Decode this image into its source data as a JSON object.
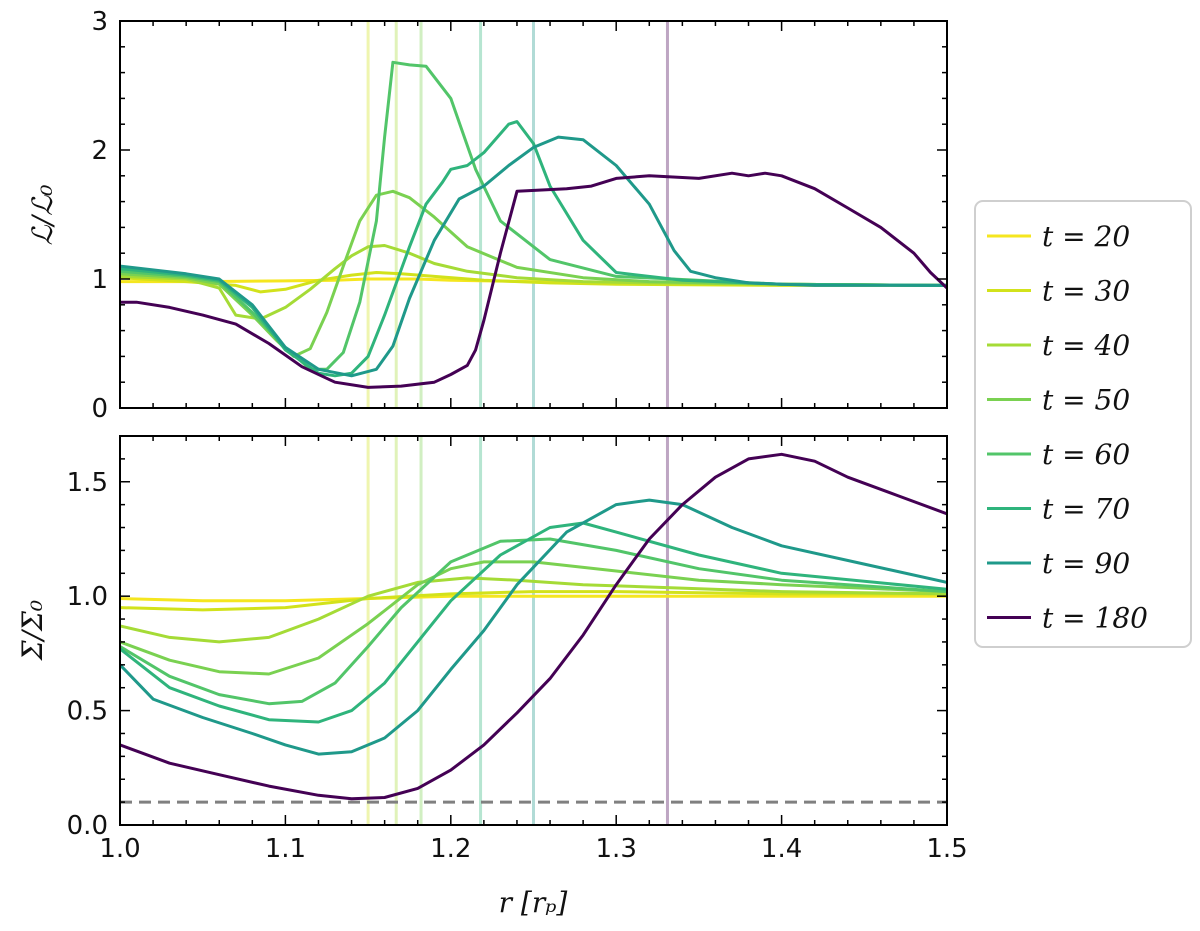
{
  "chart_data": [
    {
      "type": "line",
      "panel": "top",
      "ylabel": "ℒ/ℒ₀",
      "xlabel": "",
      "xlim": [
        1.0,
        1.5
      ],
      "ylim": [
        0,
        3
      ],
      "yticks": [
        0,
        1,
        2,
        3
      ],
      "ytick_labels": [
        "0",
        "1",
        "2",
        "3"
      ],
      "xticks": [
        1.0,
        1.1,
        1.2,
        1.3,
        1.4,
        1.5
      ],
      "vlines": [
        {
          "x": 1.15,
          "series": "t = 30"
        },
        {
          "x": 1.167,
          "series": "t = 40"
        },
        {
          "x": 1.182,
          "series": "t = 50"
        },
        {
          "x": 1.218,
          "series": "t = 70"
        },
        {
          "x": 1.25,
          "series": "t = 90"
        },
        {
          "x": 1.331,
          "series": "t = 180"
        }
      ],
      "series": [
        {
          "name": "t = 20",
          "color": "#f5e61f",
          "x": [
            1.0,
            1.05,
            1.1,
            1.13,
            1.15,
            1.18,
            1.2,
            1.3,
            1.4,
            1.5
          ],
          "y": [
            0.98,
            0.98,
            0.985,
            0.99,
            1.0,
            1.0,
            0.99,
            0.97,
            0.96,
            0.95
          ]
        },
        {
          "name": "t = 30",
          "color": "#d2e21b",
          "x": [
            1.0,
            1.04,
            1.07,
            1.085,
            1.1,
            1.12,
            1.14,
            1.155,
            1.17,
            1.19,
            1.22,
            1.26,
            1.3,
            1.4,
            1.5
          ],
          "y": [
            1.01,
            0.98,
            0.95,
            0.9,
            0.92,
            0.99,
            1.03,
            1.05,
            1.04,
            1.02,
            0.99,
            0.97,
            0.96,
            0.95,
            0.95
          ]
        },
        {
          "name": "t = 40",
          "color": "#a5db36",
          "x": [
            1.0,
            1.04,
            1.06,
            1.07,
            1.085,
            1.1,
            1.115,
            1.13,
            1.14,
            1.15,
            1.16,
            1.175,
            1.19,
            1.21,
            1.24,
            1.28,
            1.32,
            1.4,
            1.5
          ],
          "y": [
            1.02,
            1.0,
            0.93,
            0.72,
            0.69,
            0.78,
            0.92,
            1.08,
            1.18,
            1.25,
            1.26,
            1.2,
            1.12,
            1.06,
            1.01,
            0.98,
            0.97,
            0.96,
            0.95
          ]
        },
        {
          "name": "t = 50",
          "color": "#7ad151",
          "x": [
            1.0,
            1.04,
            1.06,
            1.08,
            1.095,
            1.105,
            1.115,
            1.125,
            1.135,
            1.145,
            1.155,
            1.165,
            1.175,
            1.19,
            1.21,
            1.24,
            1.28,
            1.32,
            1.4,
            1.5
          ],
          "y": [
            1.04,
            1.01,
            0.96,
            0.72,
            0.52,
            0.4,
            0.46,
            0.74,
            1.1,
            1.45,
            1.65,
            1.68,
            1.63,
            1.48,
            1.25,
            1.09,
            1.01,
            0.98,
            0.96,
            0.95
          ]
        },
        {
          "name": "t = 60",
          "color": "#52c569",
          "x": [
            1.0,
            1.04,
            1.06,
            1.08,
            1.1,
            1.115,
            1.125,
            1.135,
            1.145,
            1.155,
            1.16,
            1.165,
            1.175,
            1.185,
            1.2,
            1.215,
            1.23,
            1.26,
            1.3,
            1.4,
            1.5
          ],
          "y": [
            1.06,
            1.02,
            0.98,
            0.74,
            0.47,
            0.3,
            0.3,
            0.43,
            0.82,
            1.45,
            2.1,
            2.68,
            2.66,
            2.65,
            2.4,
            1.85,
            1.45,
            1.15,
            1.02,
            0.96,
            0.95
          ]
        },
        {
          "name": "t = 70",
          "color": "#2fb47c",
          "x": [
            1.0,
            1.04,
            1.06,
            1.08,
            1.1,
            1.12,
            1.13,
            1.14,
            1.15,
            1.16,
            1.175,
            1.185,
            1.195,
            1.2,
            1.21,
            1.22,
            1.235,
            1.24,
            1.25,
            1.26,
            1.28,
            1.3,
            1.34,
            1.4,
            1.5
          ],
          "y": [
            1.08,
            1.03,
            0.99,
            0.78,
            0.45,
            0.27,
            0.25,
            0.27,
            0.4,
            0.72,
            1.25,
            1.58,
            1.75,
            1.85,
            1.88,
            1.98,
            2.2,
            2.22,
            2.05,
            1.72,
            1.3,
            1.05,
            0.99,
            0.96,
            0.95
          ]
        },
        {
          "name": "t = 90",
          "color": "#1f998a",
          "x": [
            1.0,
            1.04,
            1.06,
            1.08,
            1.1,
            1.12,
            1.14,
            1.155,
            1.165,
            1.175,
            1.19,
            1.205,
            1.22,
            1.235,
            1.25,
            1.265,
            1.28,
            1.3,
            1.32,
            1.335,
            1.345,
            1.36,
            1.38,
            1.4,
            1.42,
            1.5
          ],
          "y": [
            1.1,
            1.04,
            1.0,
            0.8,
            0.47,
            0.3,
            0.25,
            0.3,
            0.48,
            0.85,
            1.3,
            1.62,
            1.72,
            1.88,
            2.02,
            2.1,
            2.08,
            1.88,
            1.58,
            1.22,
            1.06,
            1.01,
            0.97,
            0.96,
            0.95,
            0.95
          ]
        },
        {
          "name": "t = 180",
          "color": "#440154",
          "x": [
            1.0,
            1.01,
            1.03,
            1.05,
            1.07,
            1.09,
            1.11,
            1.13,
            1.15,
            1.17,
            1.19,
            1.2,
            1.21,
            1.215,
            1.22,
            1.23,
            1.24,
            1.255,
            1.27,
            1.285,
            1.3,
            1.32,
            1.35,
            1.37,
            1.38,
            1.39,
            1.4,
            1.42,
            1.44,
            1.46,
            1.48,
            1.49,
            1.5
          ],
          "y": [
            0.82,
            0.82,
            0.78,
            0.72,
            0.65,
            0.5,
            0.32,
            0.2,
            0.16,
            0.17,
            0.2,
            0.26,
            0.33,
            0.45,
            0.68,
            1.2,
            1.68,
            1.69,
            1.7,
            1.72,
            1.78,
            1.8,
            1.78,
            1.82,
            1.8,
            1.82,
            1.8,
            1.7,
            1.55,
            1.4,
            1.2,
            1.05,
            0.93
          ]
        }
      ]
    },
    {
      "type": "line",
      "panel": "bottom",
      "ylabel": "Σ/Σ₀",
      "xlabel": "r [rₚ]",
      "xlim": [
        1.0,
        1.5
      ],
      "ylim": [
        0.0,
        1.7
      ],
      "yticks": [
        0.0,
        0.5,
        1.0,
        1.5
      ],
      "ytick_labels": [
        "0.0",
        "0.5",
        "1.0",
        "1.5"
      ],
      "xticks": [
        1.0,
        1.1,
        1.2,
        1.3,
        1.4,
        1.5
      ],
      "xtick_labels": [
        "1.0",
        "1.1",
        "1.2",
        "1.3",
        "1.4",
        "1.5"
      ],
      "hline": {
        "y": 0.1,
        "style": "dashed",
        "color": "#808080"
      },
      "vlines": [
        {
          "x": 1.15,
          "series": "t = 30"
        },
        {
          "x": 1.167,
          "series": "t = 40"
        },
        {
          "x": 1.182,
          "series": "t = 50"
        },
        {
          "x": 1.218,
          "series": "t = 70"
        },
        {
          "x": 1.25,
          "series": "t = 90"
        },
        {
          "x": 1.331,
          "series": "t = 180"
        }
      ],
      "series": [
        {
          "name": "t = 20",
          "color": "#f5e61f",
          "x": [
            1.0,
            1.05,
            1.1,
            1.15,
            1.2,
            1.25,
            1.3,
            1.4,
            1.5
          ],
          "y": [
            0.99,
            0.98,
            0.98,
            0.99,
            1.0,
            1.0,
            1.0,
            1.0,
            1.0
          ]
        },
        {
          "name": "t = 30",
          "color": "#d2e21b",
          "x": [
            1.0,
            1.05,
            1.1,
            1.15,
            1.2,
            1.25,
            1.3,
            1.4,
            1.5
          ],
          "y": [
            0.95,
            0.94,
            0.95,
            0.99,
            1.01,
            1.02,
            1.02,
            1.01,
            1.01
          ]
        },
        {
          "name": "t = 40",
          "color": "#a5db36",
          "x": [
            1.0,
            1.03,
            1.06,
            1.09,
            1.12,
            1.15,
            1.18,
            1.21,
            1.24,
            1.28,
            1.32,
            1.4,
            1.5
          ],
          "y": [
            0.87,
            0.82,
            0.8,
            0.82,
            0.9,
            1.0,
            1.06,
            1.08,
            1.07,
            1.05,
            1.04,
            1.02,
            1.01
          ]
        },
        {
          "name": "t = 50",
          "color": "#7ad151",
          "x": [
            1.0,
            1.03,
            1.06,
            1.09,
            1.12,
            1.15,
            1.18,
            1.2,
            1.22,
            1.25,
            1.3,
            1.35,
            1.4,
            1.5
          ],
          "y": [
            0.8,
            0.72,
            0.67,
            0.66,
            0.73,
            0.88,
            1.05,
            1.12,
            1.15,
            1.15,
            1.11,
            1.07,
            1.05,
            1.02
          ]
        },
        {
          "name": "t = 60",
          "color": "#52c569",
          "x": [
            1.0,
            1.03,
            1.06,
            1.09,
            1.11,
            1.13,
            1.15,
            1.17,
            1.2,
            1.23,
            1.26,
            1.3,
            1.35,
            1.4,
            1.5
          ],
          "y": [
            0.78,
            0.65,
            0.57,
            0.53,
            0.54,
            0.62,
            0.78,
            0.95,
            1.15,
            1.24,
            1.25,
            1.2,
            1.12,
            1.07,
            1.02
          ]
        },
        {
          "name": "t = 70",
          "color": "#2fb47c",
          "x": [
            1.0,
            1.03,
            1.06,
            1.09,
            1.12,
            1.14,
            1.16,
            1.18,
            1.2,
            1.23,
            1.26,
            1.28,
            1.3,
            1.35,
            1.4,
            1.5
          ],
          "y": [
            0.77,
            0.6,
            0.52,
            0.46,
            0.45,
            0.5,
            0.62,
            0.8,
            0.98,
            1.18,
            1.3,
            1.32,
            1.28,
            1.18,
            1.1,
            1.03
          ]
        },
        {
          "name": "t = 90",
          "color": "#1f998a",
          "x": [
            1.0,
            1.02,
            1.05,
            1.08,
            1.1,
            1.12,
            1.14,
            1.16,
            1.18,
            1.2,
            1.22,
            1.24,
            1.27,
            1.3,
            1.32,
            1.34,
            1.37,
            1.4,
            1.45,
            1.5
          ],
          "y": [
            0.7,
            0.55,
            0.47,
            0.4,
            0.35,
            0.31,
            0.32,
            0.38,
            0.5,
            0.68,
            0.85,
            1.05,
            1.28,
            1.4,
            1.42,
            1.4,
            1.3,
            1.22,
            1.14,
            1.06
          ]
        },
        {
          "name": "t = 180",
          "color": "#440154",
          "x": [
            1.0,
            1.03,
            1.06,
            1.09,
            1.12,
            1.14,
            1.16,
            1.18,
            1.2,
            1.22,
            1.24,
            1.26,
            1.28,
            1.3,
            1.32,
            1.34,
            1.36,
            1.38,
            1.4,
            1.42,
            1.44,
            1.47,
            1.5
          ],
          "y": [
            0.35,
            0.27,
            0.22,
            0.17,
            0.13,
            0.115,
            0.12,
            0.16,
            0.24,
            0.35,
            0.49,
            0.64,
            0.83,
            1.05,
            1.25,
            1.4,
            1.52,
            1.6,
            1.62,
            1.59,
            1.52,
            1.44,
            1.36
          ]
        }
      ]
    }
  ],
  "legend": {
    "position": "right",
    "entries": [
      {
        "label": "t = 20",
        "color": "#f5e61f"
      },
      {
        "label": "t = 30",
        "color": "#d2e21b"
      },
      {
        "label": "t = 40",
        "color": "#a5db36"
      },
      {
        "label": "t = 50",
        "color": "#7ad151"
      },
      {
        "label": "t = 60",
        "color": "#52c569"
      },
      {
        "label": "t = 70",
        "color": "#2fb47c"
      },
      {
        "label": "t = 90",
        "color": "#1f998a"
      },
      {
        "label": "t = 180",
        "color": "#440154"
      }
    ]
  }
}
